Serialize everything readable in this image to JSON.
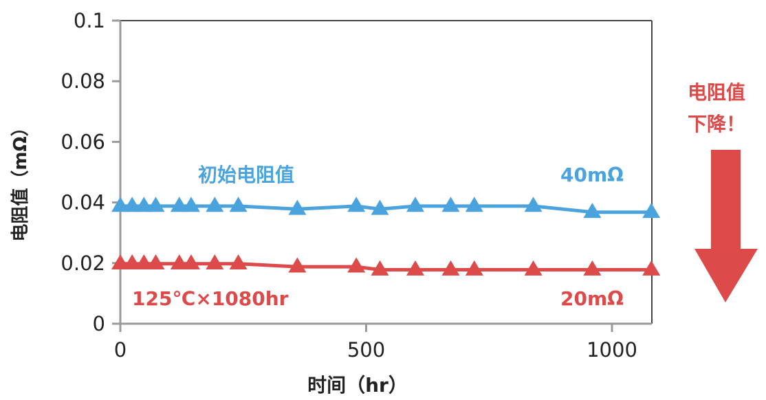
{
  "chart_data": {
    "type": "line",
    "xlabel": "时间（hr）",
    "ylabel": "电阻值（mΩ）",
    "xlim": [
      0,
      1080
    ],
    "ylim": [
      0,
      0.1
    ],
    "x_ticks": [
      "0",
      "500",
      "1000"
    ],
    "y_ticks": [
      "0",
      "0.02",
      "0.04",
      "0.06",
      "0.08",
      "0.1"
    ],
    "grid": false,
    "x": [
      0,
      24,
      48,
      72,
      120,
      144,
      192,
      240,
      360,
      480,
      528,
      600,
      672,
      720,
      840,
      960,
      1080
    ],
    "series": [
      {
        "name": "初始电阻值",
        "color": "#4aa3dd",
        "marker": "triangle",
        "values": [
          0.0388,
          0.0388,
          0.0388,
          0.0388,
          0.0388,
          0.0388,
          0.0388,
          0.0388,
          0.0378,
          0.0388,
          0.0378,
          0.0388,
          0.0388,
          0.0388,
          0.0388,
          0.0368,
          0.0368
        ]
      },
      {
        "name": "",
        "color": "#dc4a4a",
        "marker": "triangle",
        "values": [
          0.0198,
          0.0198,
          0.0198,
          0.0198,
          0.0198,
          0.0198,
          0.0198,
          0.0198,
          0.0188,
          0.0188,
          0.0178,
          0.0178,
          0.0178,
          0.0178,
          0.0178,
          0.0178,
          0.0178
        ]
      }
    ],
    "annotations": {
      "blue_value": "40mΩ",
      "red_value": "20mΩ",
      "condition": "125℃×1080hr",
      "arrow_line1": "电阻值",
      "arrow_line2": "下降！"
    }
  },
  "colors": {
    "blue": "#4aa3dd",
    "red": "#dc4a4a",
    "axis": "#999999",
    "frame": "#444444",
    "text": "#222222"
  }
}
